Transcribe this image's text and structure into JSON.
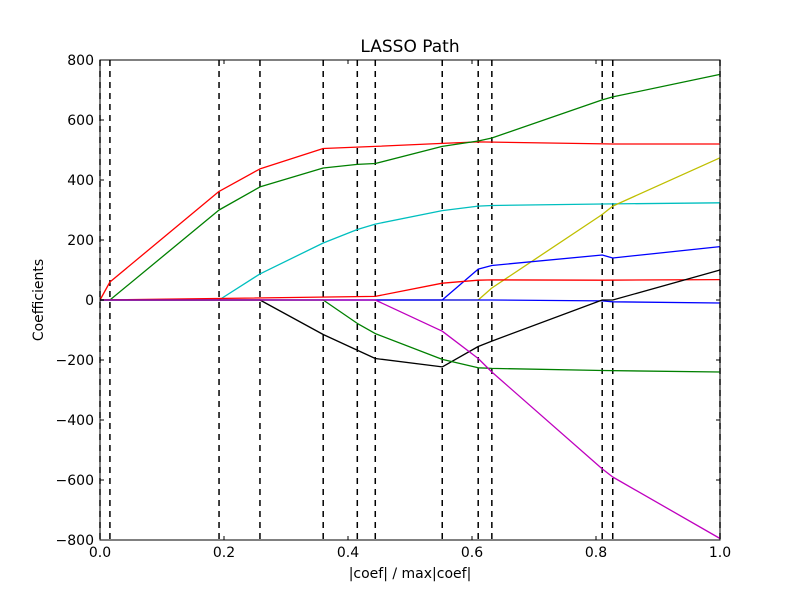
{
  "chart_data": {
    "type": "line",
    "title": "LASSO Path",
    "xlabel": "|coef| / max|coef|",
    "ylabel": "Coefficients",
    "xlim": [
      0.0,
      1.0
    ],
    "ylim": [
      -800,
      800
    ],
    "xticks": [
      0.0,
      0.2,
      0.4,
      0.6,
      0.8,
      1.0
    ],
    "xtick_labels": [
      "0.0",
      "0.2",
      "0.4",
      "0.6",
      "0.8",
      "1.0"
    ],
    "yticks": [
      -800,
      -600,
      -400,
      -200,
      0,
      200,
      400,
      600,
      800
    ],
    "ytick_labels": [
      "−800",
      "−600",
      "−400",
      "−200",
      "0",
      "200",
      "400",
      "600",
      "800"
    ],
    "vlines": [
      0.0,
      0.016,
      0.192,
      0.258,
      0.36,
      0.415,
      0.444,
      0.552,
      0.61,
      0.632,
      0.81,
      0.827,
      1.0
    ],
    "series": [
      {
        "name": "coef-red-top",
        "color": "#ff0000",
        "x": [
          0.0,
          0.016,
          0.192,
          0.258,
          0.36,
          0.444,
          0.552,
          0.61,
          0.827,
          1.0
        ],
        "y": [
          0,
          60,
          362,
          437,
          505,
          512,
          522,
          527,
          520,
          520
        ]
      },
      {
        "name": "coef-green-top",
        "color": "#008000",
        "x": [
          0.0,
          0.016,
          0.192,
          0.258,
          0.36,
          0.415,
          0.444,
          0.552,
          0.61,
          0.632,
          0.81,
          0.827,
          1.0
        ],
        "y": [
          0,
          0,
          300,
          377,
          440,
          452,
          455,
          512,
          530,
          540,
          667,
          677,
          752
        ]
      },
      {
        "name": "coef-cyan",
        "color": "#00bfbf",
        "x": [
          0.0,
          0.192,
          0.258,
          0.36,
          0.415,
          0.444,
          0.552,
          0.61,
          0.632,
          0.81,
          1.0
        ],
        "y": [
          0,
          0,
          87,
          190,
          235,
          253,
          298,
          313,
          315,
          320,
          324
        ]
      },
      {
        "name": "coef-yellow",
        "color": "#bfbf00",
        "x": [
          0.0,
          0.61,
          0.632,
          0.81,
          0.827,
          1.0
        ],
        "y": [
          0,
          0,
          40,
          285,
          313,
          474
        ]
      },
      {
        "name": "coef-blue-upper",
        "color": "#0000ff",
        "x": [
          0.0,
          0.552,
          0.61,
          0.632,
          0.81,
          0.827,
          1.0
        ],
        "y": [
          0,
          0,
          103,
          115,
          150,
          140,
          178
        ]
      },
      {
        "name": "coef-red-lower",
        "color": "#ff0000",
        "x": [
          0.0,
          0.444,
          0.552,
          0.61,
          0.632,
          0.81,
          1.0
        ],
        "y": [
          0,
          12,
          56,
          66,
          67,
          66,
          68
        ]
      },
      {
        "name": "coef-blue-lower",
        "color": "#0000ff",
        "x": [
          0.0,
          0.61,
          0.632,
          0.81,
          0.827,
          1.0
        ],
        "y": [
          0,
          0,
          0,
          -3,
          -6,
          -10
        ]
      },
      {
        "name": "coef-black",
        "color": "#000000",
        "x": [
          0.0,
          0.258,
          0.36,
          0.444,
          0.552,
          0.61,
          0.632,
          0.81,
          0.827,
          1.0
        ],
        "y": [
          0,
          0,
          -115,
          -195,
          -223,
          -155,
          -137,
          0,
          0,
          100
        ]
      },
      {
        "name": "coef-green-lower",
        "color": "#008000",
        "x": [
          0.0,
          0.36,
          0.415,
          0.444,
          0.552,
          0.61,
          0.632,
          0.81,
          1.0
        ],
        "y": [
          0,
          0,
          -78,
          -112,
          -198,
          -226,
          -228,
          -235,
          -240
        ]
      },
      {
        "name": "coef-magenta",
        "color": "#bf00bf",
        "x": [
          0.0,
          0.415,
          0.444,
          0.552,
          0.61,
          0.632,
          0.81,
          0.827,
          1.0
        ],
        "y": [
          0,
          0,
          0,
          -104,
          -195,
          -240,
          -563,
          -590,
          -795
        ]
      }
    ]
  }
}
